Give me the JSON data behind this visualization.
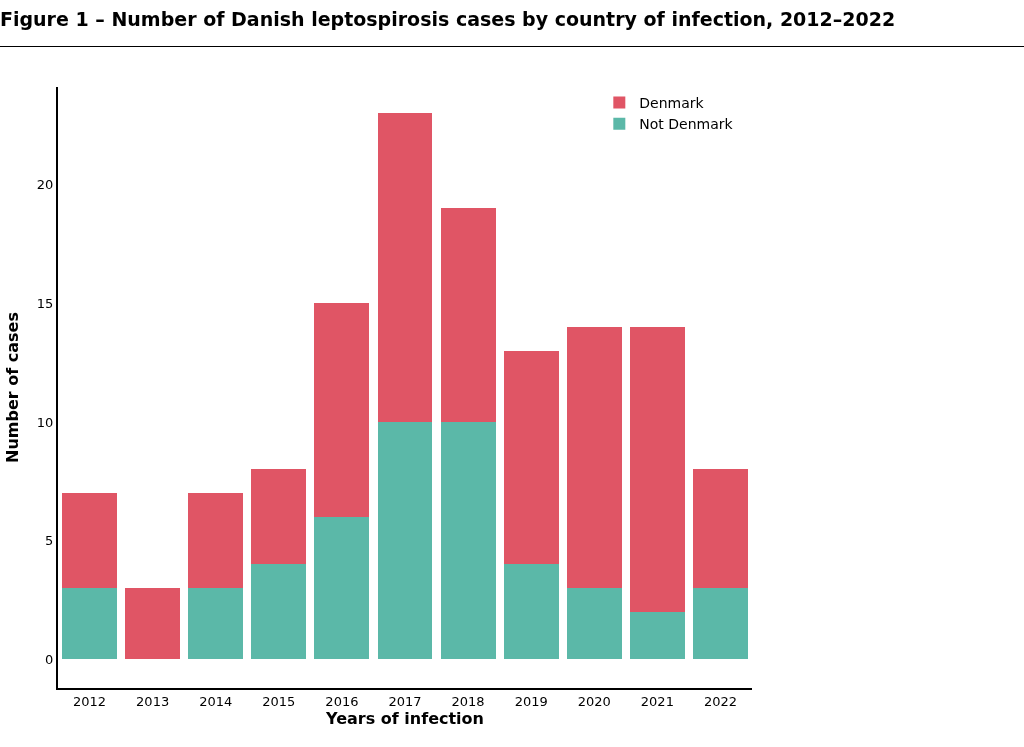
{
  "chart_data": {
    "type": "bar",
    "title": "Figure 1 – Number of Danish leptospirosis cases by country of infection, 2012–2022",
    "xlabel": "Years of infection",
    "ylabel": "Number of cases",
    "categories": [
      "2012",
      "2013",
      "2014",
      "2015",
      "2016",
      "2017",
      "2018",
      "2019",
      "2020",
      "2021",
      "2022"
    ],
    "stacked": true,
    "series": [
      {
        "name": "Not Denmark",
        "color": "#5bb8a8",
        "values": [
          3,
          0,
          3,
          4,
          6,
          10,
          10,
          4,
          3,
          2,
          3
        ]
      },
      {
        "name": "Denmark",
        "color": "#e05565",
        "values": [
          4,
          3,
          4,
          4,
          9,
          13,
          9,
          9,
          11,
          12,
          5
        ]
      }
    ],
    "ylim": [
      -1.2,
      24.1
    ],
    "yticks": [
      0,
      5,
      10,
      15,
      20
    ],
    "grid": false,
    "legend": "top right"
  }
}
